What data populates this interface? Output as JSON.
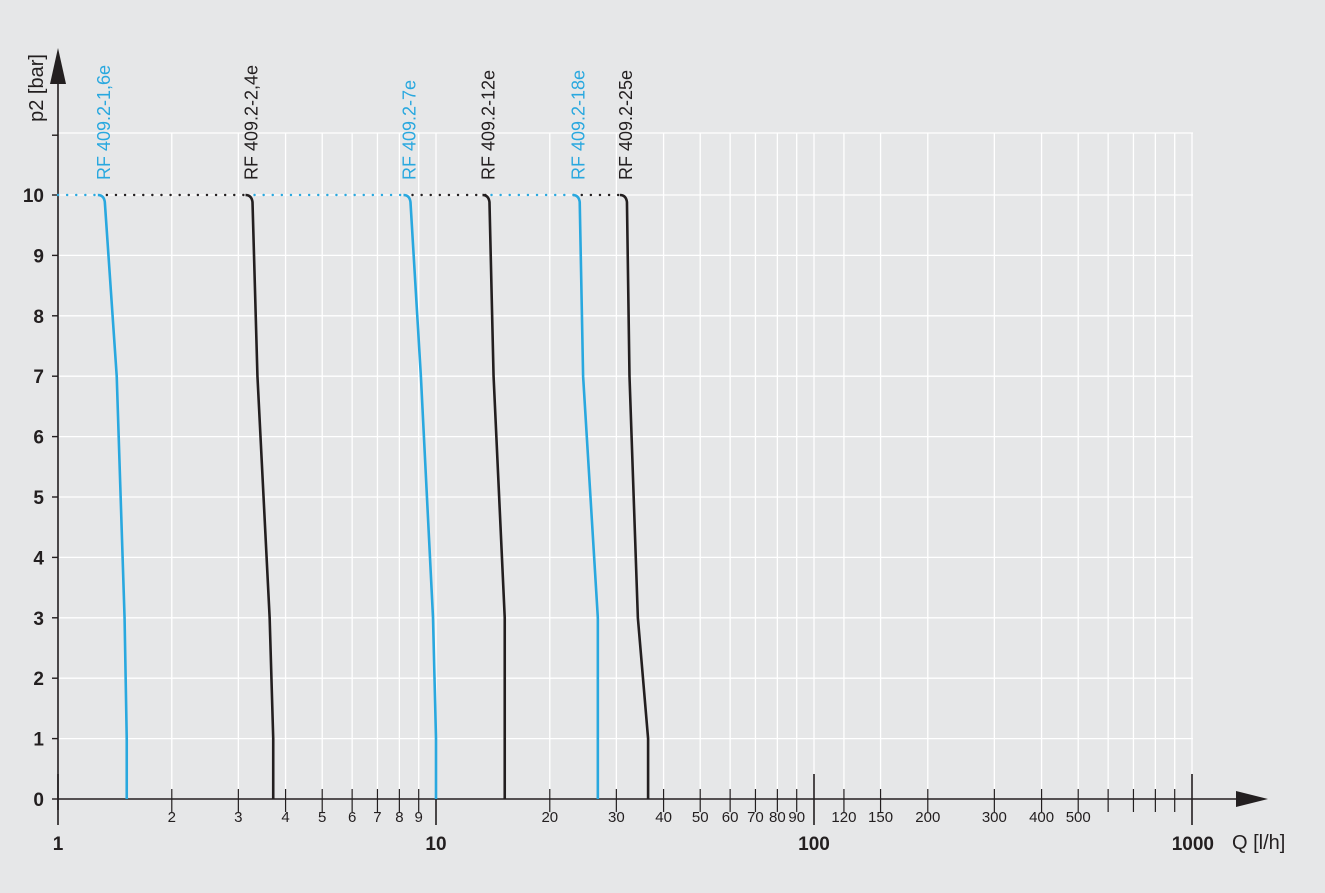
{
  "chart_data": {
    "type": "line",
    "xscale": "log",
    "xlim": [
      1,
      1000
    ],
    "ylim": [
      0,
      10
    ],
    "xlabel": "Q [l/h]",
    "ylabel": "p2 [bar]",
    "grid": true,
    "x_major_ticks": [
      {
        "value": 1,
        "label": "1"
      },
      {
        "value": 10,
        "label": "10"
      },
      {
        "value": 100,
        "label": "100"
      },
      {
        "value": 1000,
        "label": "1000"
      }
    ],
    "x_minor_ticks": [
      {
        "value": 2,
        "label": "2"
      },
      {
        "value": 3,
        "label": "3"
      },
      {
        "value": 4,
        "label": "4"
      },
      {
        "value": 5,
        "label": "5"
      },
      {
        "value": 6,
        "label": "6"
      },
      {
        "value": 7,
        "label": "7"
      },
      {
        "value": 8,
        "label": "8"
      },
      {
        "value": 9,
        "label": "9"
      },
      {
        "value": 20,
        "label": "20"
      },
      {
        "value": 30,
        "label": "30"
      },
      {
        "value": 40,
        "label": "40"
      },
      {
        "value": 50,
        "label": "50"
      },
      {
        "value": 60,
        "label": "60"
      },
      {
        "value": 70,
        "label": "70"
      },
      {
        "value": 80,
        "label": "80"
      },
      {
        "value": 90,
        "label": "90"
      },
      {
        "value": 120,
        "label": "120"
      },
      {
        "value": 150,
        "label": "150"
      },
      {
        "value": 200,
        "label": "200"
      },
      {
        "value": 300,
        "label": "300"
      },
      {
        "value": 400,
        "label": "400"
      },
      {
        "value": 500,
        "label": "500"
      },
      {
        "value": 600,
        "label": ""
      },
      {
        "value": 700,
        "label": ""
      },
      {
        "value": 800,
        "label": ""
      },
      {
        "value": 900,
        "label": ""
      }
    ],
    "y_ticks": [
      0,
      1,
      2,
      3,
      4,
      5,
      6,
      7,
      8,
      9,
      10
    ],
    "colors": {
      "blue": "#29a8df",
      "black": "#231f20",
      "grid": "#ffffff",
      "background": "#e6e7e8"
    },
    "series": [
      {
        "name": "RF 409.2-1,6e",
        "color": "blue",
        "x": [
          1.33,
          1.43,
          1.5,
          1.52,
          1.52
        ],
        "y": [
          10,
          7,
          3,
          1,
          0
        ]
      },
      {
        "name": "RF 409.2-2,4e",
        "color": "black",
        "x": [
          3.27,
          3.37,
          3.63,
          3.71,
          3.71
        ],
        "y": [
          10,
          7,
          3,
          1,
          0
        ]
      },
      {
        "name": "RF 409.2-7e",
        "color": "blue",
        "x": [
          8.56,
          9.12,
          9.82,
          10.0,
          10.0
        ],
        "y": [
          10,
          7,
          3,
          1,
          0
        ]
      },
      {
        "name": "RF 409.2-12e",
        "color": "black",
        "x": [
          13.85,
          14.2,
          15.2,
          15.2,
          15.2
        ],
        "y": [
          10,
          7,
          3,
          1,
          0
        ]
      },
      {
        "name": "RF 409.2-18e",
        "color": "blue",
        "x": [
          24.0,
          24.5,
          26.8,
          26.8,
          26.8
        ],
        "y": [
          10,
          7,
          3,
          1,
          0
        ]
      },
      {
        "name": "RF 409.2-25e",
        "color": "black",
        "x": [
          32.0,
          32.5,
          34.2,
          36.4,
          36.4
        ],
        "y": [
          10,
          7,
          3,
          1,
          0
        ]
      }
    ]
  }
}
